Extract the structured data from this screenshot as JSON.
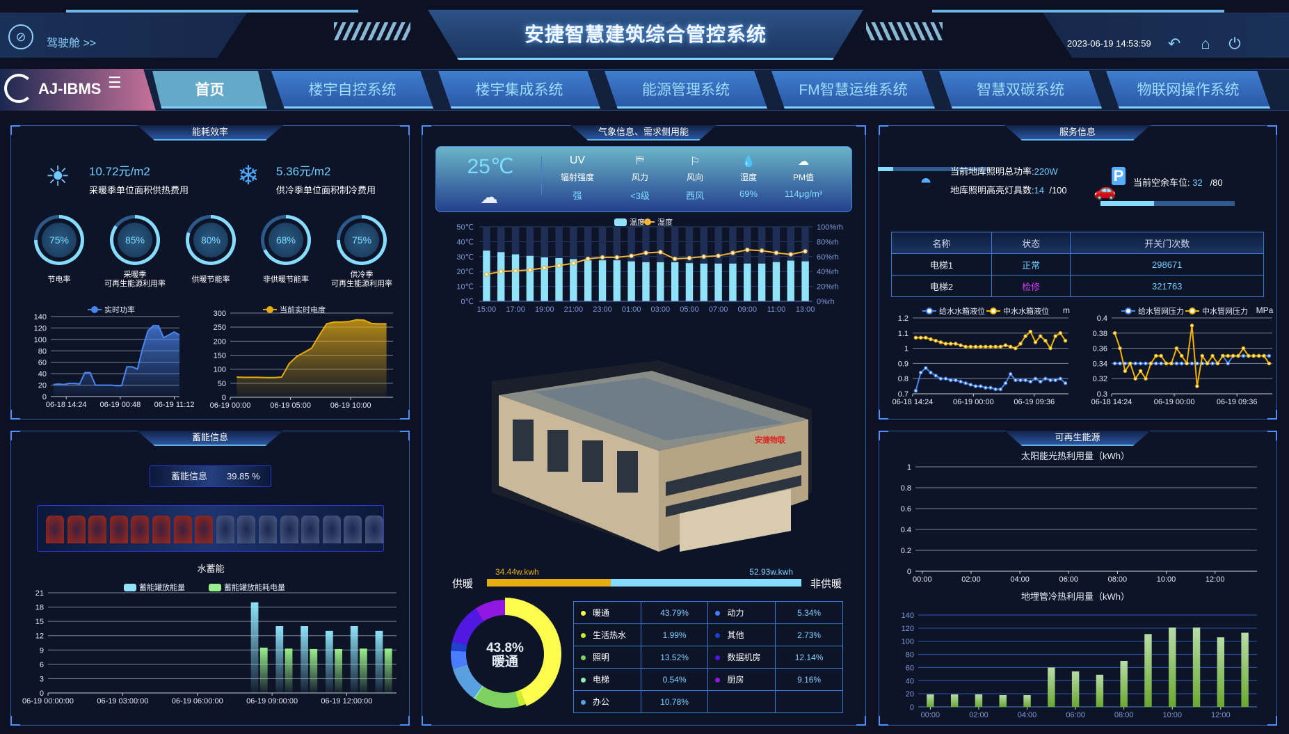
{
  "header": {
    "title": "安捷智慧建筑综合管控系统",
    "cockpit_label": "驾驶舱 >>",
    "datetime": "2023-06-19 14:53:59",
    "icons": [
      "back-icon",
      "home-icon",
      "power-icon"
    ]
  },
  "nav": {
    "logo": "AJ-IBMS",
    "tabs": [
      {
        "label": "首页",
        "active": true
      },
      {
        "label": "楼宇自控系统"
      },
      {
        "label": "楼宇集成系统"
      },
      {
        "label": "能源管理系统"
      },
      {
        "label": "FM智慧运维系统"
      },
      {
        "label": "智慧双碳系统"
      },
      {
        "label": "物联网操作系统"
      }
    ]
  },
  "energy_panel": {
    "title": "能耗效率",
    "heating_cost": {
      "value": "10.72元/m2",
      "label": "采暖季单位面积供热费用"
    },
    "cooling_cost": {
      "value": "5.36元/m2",
      "label": "供冷季单位面积制冷费用"
    },
    "gauges": [
      {
        "value": 75,
        "text": "75%",
        "label": "节电率"
      },
      {
        "value": 85,
        "text": "85%",
        "label": "采暖季\n可再生能源利用率"
      },
      {
        "value": 80,
        "text": "80%",
        "label": "供暖节能率"
      },
      {
        "value": 68,
        "text": "68%",
        "label": "非供暖节能率"
      },
      {
        "value": 75,
        "text": "75%",
        "label": "供冷季\n可再生能源利用率"
      }
    ]
  },
  "weather_panel": {
    "title": "气象信息、需求侧用能",
    "temperature": "25℃",
    "items": [
      {
        "head": "UV",
        "label": "辐射强度",
        "value": "强"
      },
      {
        "icon": "wind-force-icon",
        "label": "风力",
        "value": "<3级"
      },
      {
        "icon": "wind-direction-flag-icon",
        "label": "风向",
        "value": "西风"
      },
      {
        "icon": "humidity-drop-icon",
        "label": "湿度",
        "value": "69%"
      },
      {
        "icon": "pm-cloud-icon",
        "label": "PM值",
        "value": "114μg/m³"
      }
    ],
    "heating_split": {
      "left_label": "供暖",
      "right_label": "非供暖",
      "heating_value": "34.44w.kwh",
      "non_heating_value": "52.93w.kwh",
      "heating": 34.44,
      "non_heating": 52.93
    },
    "building_sign": "安捷物联"
  },
  "service_panel": {
    "title": "服务信息",
    "lighting_power": {
      "label": "当前地库照明总功率:",
      "value": "220W"
    },
    "lighting_count": {
      "label": "地库照明高亮灯具数:",
      "value": "14",
      "total": "/100"
    },
    "parking": {
      "label": "当前空余车位:",
      "value": "32",
      "total": "/80",
      "fraction": 0.4
    },
    "table": {
      "headers": [
        "名称",
        "状态",
        "开关门次数"
      ],
      "rows": [
        {
          "name": "电梯1",
          "status": "正常",
          "status_color": "#6fd0ff",
          "count": "298671"
        },
        {
          "name": "电梯2",
          "status": "检修",
          "status_color": "#d23cf0",
          "count": "321763"
        }
      ]
    }
  },
  "storage_panel": {
    "title": "蓄能信息",
    "info_label": "蓄能信息",
    "info_value": "39.85 %",
    "filled_cells": 8,
    "total_cells": 16,
    "subtitle": "水蓄能"
  },
  "renewable_panel": {
    "title": "可再生能源"
  },
  "chart_data": [
    {
      "id": "power",
      "type": "area",
      "legend": "实时功率",
      "color": "#4a86f0",
      "ylim": [
        0,
        140
      ],
      "yticks": [
        0,
        20,
        40,
        60,
        80,
        100,
        120,
        140
      ],
      "xtick_labels": [
        "06-18 14:24",
        "06-19 00:48",
        "06-19 11:12"
      ],
      "values": [
        21,
        22,
        21,
        23,
        23,
        22,
        42,
        42,
        20,
        20,
        20,
        20,
        19,
        19,
        52,
        52,
        48,
        85,
        115,
        124,
        124,
        103,
        108,
        113,
        108
      ]
    },
    {
      "id": "kwh",
      "type": "area",
      "legend": "当前实时电度",
      "color": "#e6ac10",
      "ylim": [
        0,
        300
      ],
      "yticks": [
        0,
        50,
        100,
        150,
        200,
        250,
        300
      ],
      "xtick_labels": [
        "06-19 00:00",
        "06-19 05:00",
        "06-19 10:00"
      ],
      "values": [
        72,
        71,
        71,
        71,
        70,
        70,
        72,
        120,
        145,
        160,
        175,
        220,
        262,
        268,
        268,
        270,
        276,
        275,
        263,
        262,
        262
      ]
    },
    {
      "id": "weather",
      "type": "bar+line",
      "legend": [
        "温度",
        "湿度"
      ],
      "colors": [
        "#8fe2f8",
        "#f0b43c"
      ],
      "ylim": [
        0,
        50
      ],
      "yticks": [
        "0℃",
        "10℃",
        "20℃",
        "30℃",
        "40℃",
        "50℃"
      ],
      "y2lim": [
        0,
        100
      ],
      "y2ticks": [
        "0%rh",
        "20%rh",
        "40%rh",
        "60%rh",
        "80%rh",
        "100%rh"
      ],
      "categories": [
        "15:00",
        "16:00",
        "17:00",
        "18:00",
        "19:00",
        "20:00",
        "21:00",
        "22:00",
        "23:00",
        "00:00",
        "01:00",
        "02:00",
        "03:00",
        "04:00",
        "05:00",
        "06:00",
        "07:00",
        "08:00",
        "09:00",
        "10:00",
        "11:00",
        "12:00",
        "13:00"
      ],
      "xtick_labels": [
        "15:00",
        "17:00",
        "19:00",
        "21:00",
        "23:00",
        "01:00",
        "03:00",
        "05:00",
        "07:00",
        "09:00",
        "11:00",
        "13:00"
      ],
      "temperature": [
        34,
        33,
        31.5,
        30.5,
        29.5,
        29,
        28.3,
        27.5,
        27.5,
        27.5,
        26.8,
        26.2,
        26.2,
        26.2,
        25.6,
        25.3,
        25.3,
        25.3,
        25.3,
        25.3,
        26.3,
        27.3,
        26.8
      ],
      "humidity": [
        36,
        40,
        41,
        42,
        45,
        48,
        51,
        57,
        59,
        59,
        61,
        65,
        66,
        57,
        58,
        60,
        61,
        65,
        69,
        68,
        65,
        63,
        67
      ]
    },
    {
      "id": "water",
      "type": "line",
      "unit": "m",
      "ylim": [
        0.7,
        1.2
      ],
      "yticks": [
        0.7,
        0.8,
        0.9,
        1,
        1.1,
        1.2
      ],
      "xtick_labels": [
        "06-18 14:24",
        "06-19 00:00",
        "06-19 09:36"
      ],
      "series": [
        {
          "name": "给水水箱液位",
          "color": "#4a86f0",
          "values": [
            0.72,
            0.84,
            0.87,
            0.84,
            0.82,
            0.8,
            0.8,
            0.79,
            0.79,
            0.78,
            0.77,
            0.76,
            0.75,
            0.75,
            0.74,
            0.74,
            0.73,
            0.73,
            0.77,
            0.83,
            0.79,
            0.79,
            0.79,
            0.78,
            0.8,
            0.78,
            0.8,
            0.79,
            0.79,
            0.8,
            0.77
          ]
        },
        {
          "name": "中水水箱液位",
          "color": "#f0b400",
          "values": [
            1.07,
            1.07,
            1.07,
            1.06,
            1.05,
            1.04,
            1.03,
            1.03,
            1.03,
            1.02,
            1.01,
            1.01,
            1.01,
            1.01,
            1.01,
            1.01,
            1.01,
            1.01,
            1.02,
            1.01,
            1.0,
            1.03,
            1.08,
            1.11,
            1.04,
            1.08,
            1.05,
            1.0,
            1.08,
            1.1,
            1.05
          ]
        }
      ]
    },
    {
      "id": "pressure",
      "type": "line",
      "unit": "MPa",
      "ylim": [
        0.3,
        0.4
      ],
      "yticks": [
        0.3,
        0.32,
        0.34,
        0.36,
        0.38,
        0.4
      ],
      "xtick_labels": [
        "06-18 14:24",
        "06-19 00:00",
        "06-19 09:36"
      ],
      "series": [
        {
          "name": "给水管网压力",
          "color": "#4a86f0",
          "values": [
            0.34,
            0.34,
            0.34,
            0.34,
            0.34,
            0.34,
            0.34,
            0.34,
            0.34,
            0.34,
            0.34,
            0.34,
            0.34,
            0.34,
            0.34,
            0.34,
            0.34,
            0.34,
            0.34,
            0.34,
            0.34,
            0.35,
            0.34,
            0.35,
            0.35,
            0.35,
            0.35,
            0.35,
            0.35,
            0.35,
            0.35
          ]
        },
        {
          "name": "中水管网压力",
          "color": "#f0b400",
          "values": [
            0.38,
            0.36,
            0.33,
            0.34,
            0.32,
            0.33,
            0.32,
            0.34,
            0.35,
            0.35,
            0.34,
            0.34,
            0.36,
            0.35,
            0.34,
            0.39,
            0.31,
            0.35,
            0.34,
            0.35,
            0.34,
            0.35,
            0.35,
            0.35,
            0.35,
            0.36,
            0.35,
            0.35,
            0.35,
            0.35,
            0.34
          ]
        }
      ]
    },
    {
      "id": "storage",
      "type": "bar",
      "ylim": [
        0,
        21
      ],
      "yticks": [
        0,
        3,
        6,
        9,
        12,
        15,
        18,
        21
      ],
      "xtick_labels": [
        "06-19 00:00:00",
        "06-19 03:00:00",
        "06-19 06:00:00",
        "06-19 09:00:00",
        "06-19 12:00:00"
      ],
      "categories": [
        "00:00",
        "01:00",
        "02:00",
        "03:00",
        "04:00",
        "05:00",
        "06:00",
        "07:00",
        "08:00",
        "09:00",
        "10:00",
        "11:00",
        "12:00",
        "13:00"
      ],
      "series": [
        {
          "name": "蓄能罐放能量",
          "color": "#8fe2f8",
          "values": [
            null,
            null,
            null,
            null,
            null,
            null,
            null,
            null,
            19,
            14,
            14,
            13,
            14,
            13
          ]
        },
        {
          "name": "蓄能罐放能耗电量",
          "color": "#9af08a",
          "values": [
            null,
            null,
            null,
            null,
            null,
            null,
            null,
            null,
            9.5,
            9.3,
            9.2,
            9.2,
            9.3,
            9.3
          ]
        }
      ]
    },
    {
      "id": "solar",
      "type": "line",
      "title": "太阳能光热利用量（kWh）",
      "ylim": [
        0,
        1
      ],
      "yticks": [
        0,
        0.2,
        0.4,
        0.6,
        0.8,
        1
      ],
      "xtick_labels": [
        "00:00",
        "02:00",
        "04:00",
        "06:00",
        "08:00",
        "10:00",
        "12:00"
      ],
      "values": []
    },
    {
      "id": "geo",
      "type": "bar",
      "title": "地埋管冷热利用量（kWh）",
      "color": "#6aa830",
      "ylim": [
        0,
        140
      ],
      "yticks": [
        0,
        20,
        40,
        60,
        80,
        100,
        120,
        140
      ],
      "xtick_labels": [
        "00:00",
        "02:00",
        "04:00",
        "06:00",
        "08:00",
        "10:00",
        "12:00"
      ],
      "categories": [
        "00:00",
        "01:00",
        "02:00",
        "03:00",
        "04:00",
        "05:00",
        "06:00",
        "07:00",
        "08:00",
        "09:00",
        "10:00",
        "11:00",
        "12:00",
        "13:00"
      ],
      "values": [
        19,
        19,
        19,
        18,
        18,
        60,
        54,
        49,
        70,
        111,
        121,
        121,
        106,
        113
      ]
    },
    {
      "id": "usage",
      "type": "pie",
      "center_value": "43.8%",
      "center_label": "暖通",
      "slices": [
        {
          "name": "暖通",
          "value": 43.79,
          "text": "43.79%",
          "color": "#fdfd50"
        },
        {
          "name": "生活热水",
          "value": 1.99,
          "text": "1.99%",
          "color": "#c8f030"
        },
        {
          "name": "照明",
          "value": 13.52,
          "text": "13.52%",
          "color": "#7ed060"
        },
        {
          "name": "电梯",
          "value": 0.54,
          "text": "0.54%",
          "color": "#90f0b0"
        },
        {
          "name": "办公",
          "value": 10.78,
          "text": "10.78%",
          "color": "#5aa0e0"
        },
        {
          "name": "动力",
          "value": 5.34,
          "text": "5.34%",
          "color": "#4a7cff"
        },
        {
          "name": "其他",
          "value": 2.73,
          "text": "2.73%",
          "color": "#2040d0"
        },
        {
          "name": "数据机房",
          "value": 12.14,
          "text": "12.14%",
          "color": "#5018e0"
        },
        {
          "name": "厨房",
          "value": 9.16,
          "text": "9.16%",
          "color": "#9018e0"
        }
      ]
    }
  ]
}
